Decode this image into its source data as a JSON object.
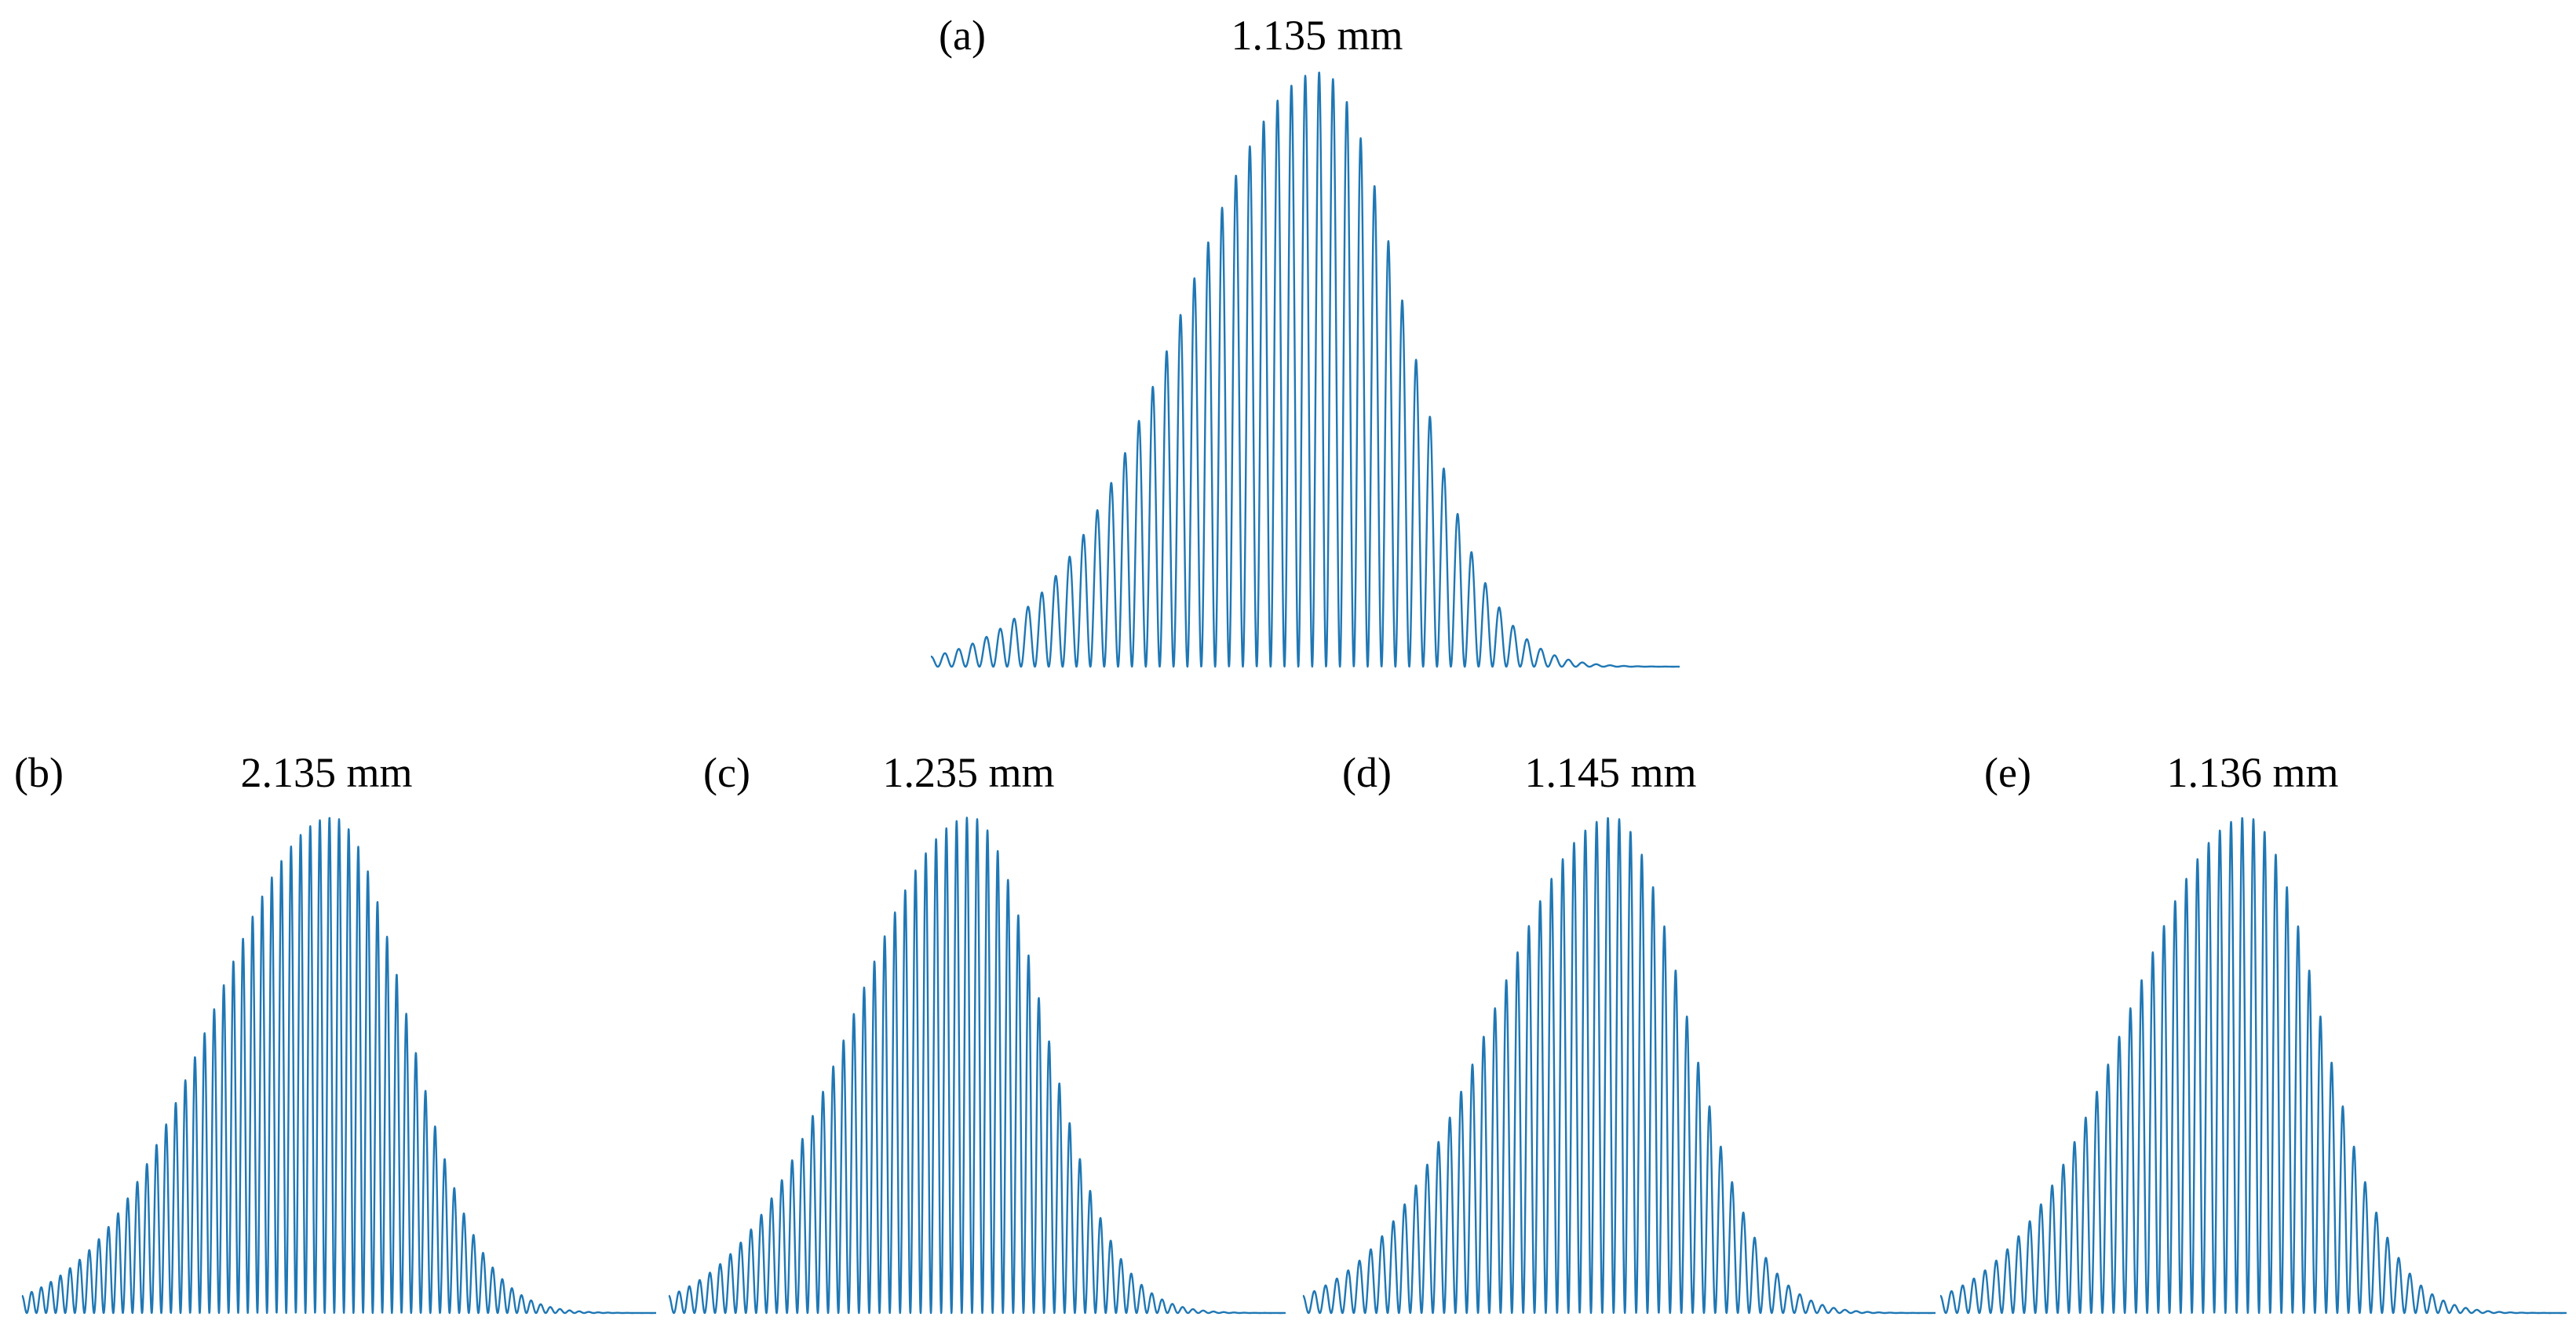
{
  "figure": {
    "line_color": "#1f77b4",
    "background": "#ffffff"
  },
  "chart_data": [
    {
      "type": "line",
      "panel_label": "(a)",
      "title": "1.135 mm",
      "xlabel": "",
      "ylabel": "",
      "grid": false,
      "axes_visible": false,
      "series": [
        {
          "envelope_center": 0.52,
          "envelope_sigma": 0.135,
          "envelope_skew": 0.35,
          "fringes": 54,
          "peak": 1.0
        }
      ]
    },
    {
      "type": "line",
      "panel_label": "(b)",
      "title": "2.135 mm",
      "xlabel": "",
      "ylabel": "",
      "grid": false,
      "axes_visible": false,
      "series": [
        {
          "envelope_center": 0.49,
          "envelope_sigma": 0.14,
          "envelope_skew": 0.35,
          "fringes": 66,
          "peak": 1.0
        }
      ]
    },
    {
      "type": "line",
      "panel_label": "(c)",
      "title": "1.235 mm",
      "xlabel": "",
      "ylabel": "",
      "grid": false,
      "axes_visible": false,
      "series": [
        {
          "envelope_center": 0.49,
          "envelope_sigma": 0.14,
          "envelope_skew": 0.35,
          "fringes": 60,
          "peak": 1.0
        }
      ]
    },
    {
      "type": "line",
      "panel_label": "(d)",
      "title": "1.145 mm",
      "xlabel": "",
      "ylabel": "",
      "grid": false,
      "axes_visible": false,
      "series": [
        {
          "envelope_center": 0.49,
          "envelope_sigma": 0.14,
          "envelope_skew": 0.35,
          "fringes": 56,
          "peak": 1.0
        }
      ]
    },
    {
      "type": "line",
      "panel_label": "(e)",
      "title": "1.136 mm",
      "xlabel": "",
      "ylabel": "",
      "grid": false,
      "axes_visible": false,
      "series": [
        {
          "envelope_center": 0.49,
          "envelope_sigma": 0.14,
          "envelope_skew": 0.35,
          "fringes": 56,
          "peak": 1.0
        }
      ]
    }
  ]
}
